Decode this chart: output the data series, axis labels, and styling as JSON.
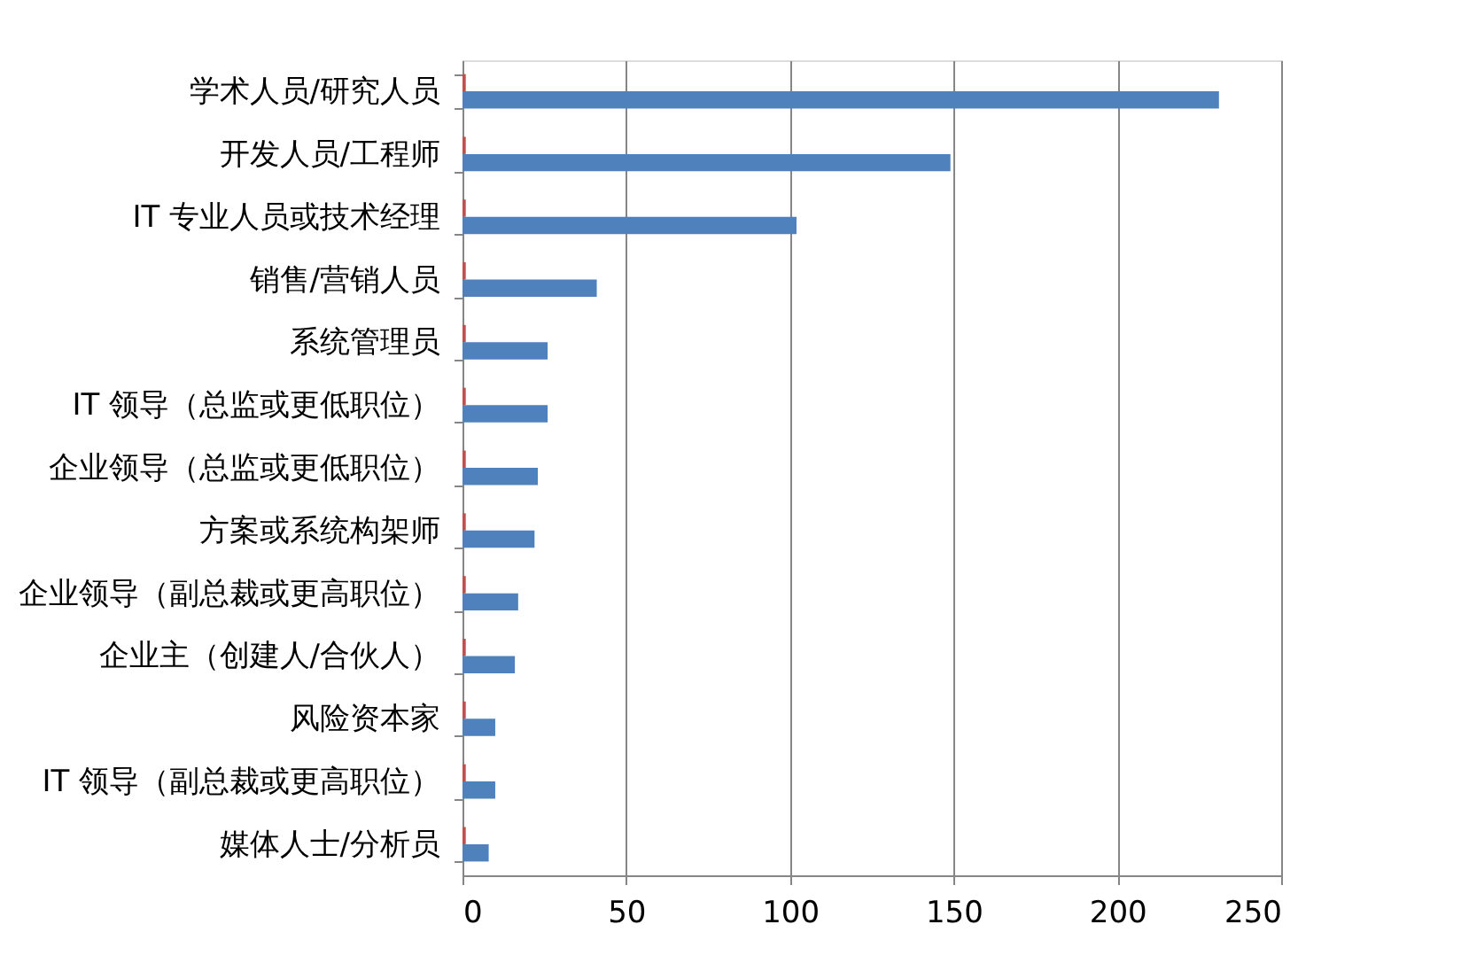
{
  "chart_data": {
    "type": "bar",
    "orientation": "horizontal",
    "categories": [
      "学术人员/研究人员",
      "开发人员/工程师",
      "IT 专业人员或技术经理",
      "销售/营销人员",
      "系统管理员",
      "IT 领导（总监或更低职位）",
      "企业领导（总监或更低职位）",
      "方案或系统构架师",
      "企业领导（副总裁或更高职位）",
      "企业主（创建人/合伙人）",
      "风险资本家",
      "IT 领导（副总裁或更高职位）",
      "媒体人士/分析员"
    ],
    "series": [
      {
        "color": "#c0504d",
        "values": [
          1,
          1,
          1,
          1,
          1,
          1,
          1,
          1,
          1,
          1,
          1,
          1,
          1
        ]
      },
      {
        "color": "#4f81bd",
        "values": [
          231,
          149,
          102,
          41,
          26,
          26,
          23,
          22,
          17,
          16,
          10,
          10,
          8
        ]
      }
    ],
    "xlim": [
      0,
      250
    ],
    "xticks": [
      0,
      50,
      100,
      150,
      200,
      250
    ],
    "grid": "x",
    "legend": false
  }
}
